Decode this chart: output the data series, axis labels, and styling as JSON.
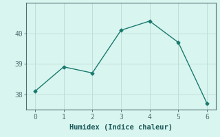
{
  "title": "",
  "xlabel": "Humidex (Indice chaleur)",
  "x": [
    0,
    1,
    2,
    3,
    4,
    5,
    6
  ],
  "y": [
    38.1,
    38.9,
    38.7,
    40.1,
    40.4,
    39.7,
    37.7
  ],
  "line_color": "#1a7a6e",
  "marker": "D",
  "marker_size": 2.5,
  "bg_color": "#d9f5f0",
  "grid_color": "#c0ddd8",
  "axis_color": "#507070",
  "tick_color": "#507070",
  "label_color": "#1a5a5a",
  "xlim": [
    -0.3,
    6.3
  ],
  "ylim": [
    37.5,
    41.0
  ],
  "yticks": [
    38,
    39,
    40
  ],
  "xticks": [
    0,
    1,
    2,
    3,
    4,
    5,
    6
  ]
}
